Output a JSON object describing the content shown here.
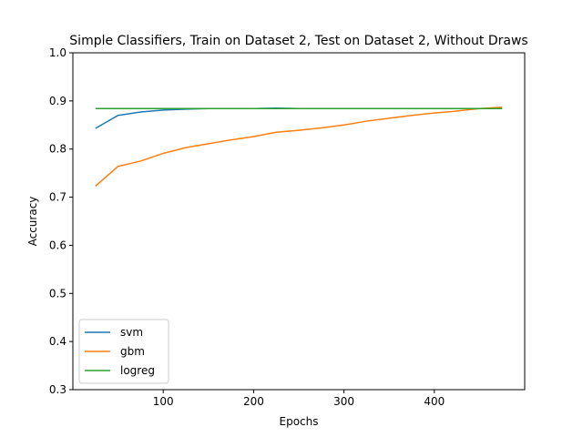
{
  "chart_data": {
    "type": "line",
    "title": "Simple Classifiers, Train on Dataset 2, Test on Dataset 2, Without Draws",
    "xlabel": "Epochs",
    "ylabel": "Accuracy",
    "xlim": [
      0,
      500
    ],
    "ylim": [
      0.3,
      1.0
    ],
    "xticks": [
      100,
      200,
      300,
      400
    ],
    "yticks": [
      0.3,
      0.4,
      0.5,
      0.6,
      0.7,
      0.8,
      0.9,
      1.0
    ],
    "ytick_labels": [
      "0.3",
      "0.4",
      "0.5",
      "0.6",
      "0.7",
      "0.8",
      "0.9",
      "1.0"
    ],
    "grid": false,
    "legend_position": "lower-left",
    "x": [
      25,
      50,
      75,
      100,
      125,
      150,
      175,
      200,
      225,
      250,
      275,
      300,
      325,
      350,
      375,
      400,
      425,
      450,
      475
    ],
    "series": [
      {
        "name": "svm",
        "color": "#1f77b4",
        "values": [
          0.843,
          0.87,
          0.877,
          0.881,
          0.883,
          0.884,
          0.884,
          0.884,
          0.885,
          0.884,
          0.884,
          0.884,
          0.884,
          0.884,
          0.884,
          0.884,
          0.884,
          0.884,
          0.884
        ]
      },
      {
        "name": "gbm",
        "color": "#ff7f0e",
        "values": [
          0.723,
          0.764,
          0.775,
          0.791,
          0.803,
          0.811,
          0.819,
          0.826,
          0.835,
          0.839,
          0.844,
          0.85,
          0.858,
          0.864,
          0.87,
          0.875,
          0.879,
          0.884,
          0.887
        ]
      },
      {
        "name": "logreg",
        "color": "#2ca02c",
        "values": [
          0.884,
          0.884,
          0.884,
          0.884,
          0.884,
          0.884,
          0.884,
          0.884,
          0.884,
          0.884,
          0.884,
          0.884,
          0.884,
          0.884,
          0.884,
          0.884,
          0.884,
          0.884,
          0.884
        ]
      }
    ]
  }
}
